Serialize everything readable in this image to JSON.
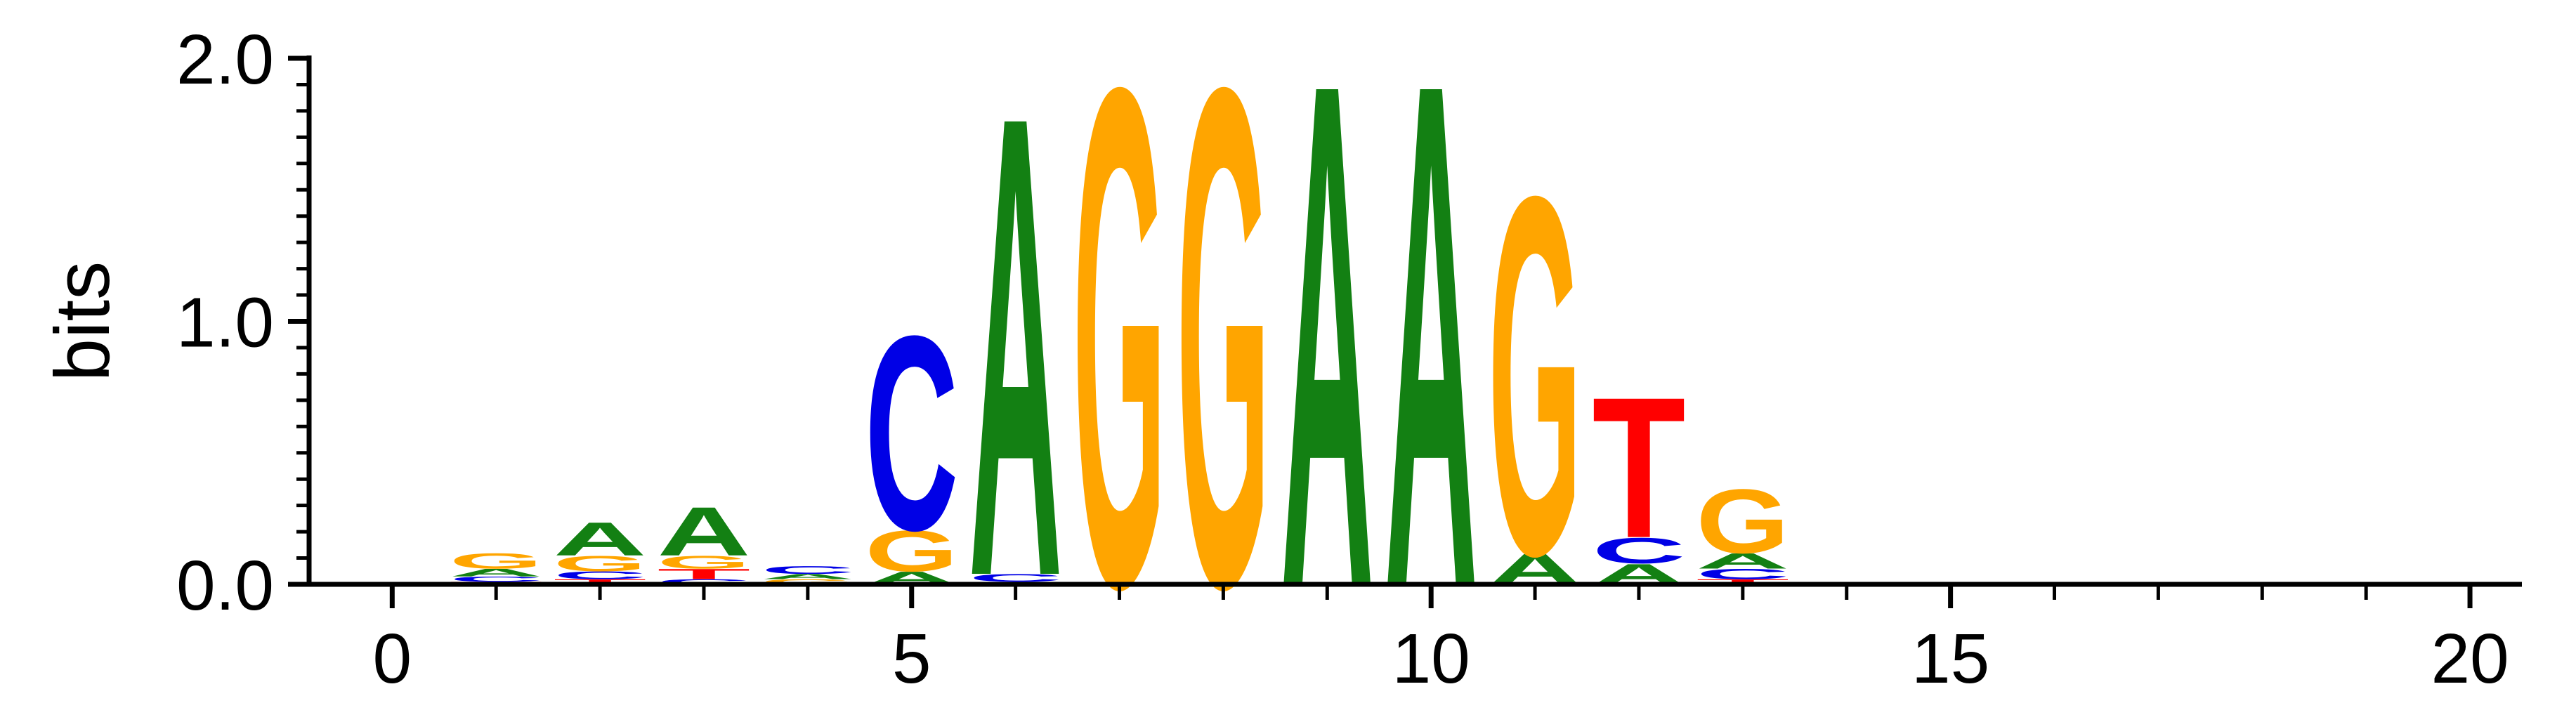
{
  "chart_data": {
    "type": "sequence-logo",
    "ylabel": "bits",
    "ylim": [
      0,
      2.0
    ],
    "xlim": [
      -0.8,
      20.5
    ],
    "x_ticks": [
      0,
      5,
      10,
      15,
      20
    ],
    "y_ticks": [
      0.0,
      1.0,
      2.0
    ],
    "x_tick_labels": [
      "0",
      "5",
      "10",
      "15",
      "20"
    ],
    "y_tick_labels": [
      "0.0",
      "1.0",
      "2.0"
    ],
    "colors": {
      "A": "#138013",
      "C": "#0000e6",
      "G": "#ffa500",
      "T": "#ff0000"
    },
    "positions": [
      {
        "pos": 1,
        "stack": [
          {
            "base": "T",
            "bits": 0.01
          },
          {
            "base": "C",
            "bits": 0.02
          },
          {
            "base": "A",
            "bits": 0.03
          },
          {
            "base": "G",
            "bits": 0.06
          }
        ]
      },
      {
        "pos": 2,
        "stack": [
          {
            "base": "T",
            "bits": 0.02
          },
          {
            "base": "C",
            "bits": 0.03
          },
          {
            "base": "G",
            "bits": 0.06
          },
          {
            "base": "A",
            "bits": 0.13
          }
        ]
      },
      {
        "pos": 3,
        "stack": [
          {
            "base": "C",
            "bits": 0.02
          },
          {
            "base": "T",
            "bits": 0.04
          },
          {
            "base": "G",
            "bits": 0.05
          },
          {
            "base": "A",
            "bits": 0.19
          }
        ]
      },
      {
        "pos": 4,
        "stack": [
          {
            "base": "G",
            "bits": 0.02
          },
          {
            "base": "A",
            "bits": 0.02
          },
          {
            "base": "C",
            "bits": 0.03
          }
        ]
      },
      {
        "pos": 5,
        "stack": [
          {
            "base": "A",
            "bits": 0.05
          },
          {
            "base": "G",
            "bits": 0.16
          },
          {
            "base": "C",
            "bits": 0.76
          }
        ]
      },
      {
        "pos": 6,
        "stack": [
          {
            "base": "G",
            "bits": 0.01
          },
          {
            "base": "C",
            "bits": 0.03
          },
          {
            "base": "A",
            "bits": 1.8
          }
        ]
      },
      {
        "pos": 7,
        "stack": [
          {
            "base": "G",
            "bits": 1.95
          }
        ]
      },
      {
        "pos": 8,
        "stack": [
          {
            "base": "G",
            "bits": 1.95
          }
        ]
      },
      {
        "pos": 9,
        "stack": [
          {
            "base": "A",
            "bits": 1.97
          }
        ]
      },
      {
        "pos": 10,
        "stack": [
          {
            "base": "A",
            "bits": 1.97
          }
        ]
      },
      {
        "pos": 11,
        "stack": [
          {
            "base": "A",
            "bits": 0.12
          },
          {
            "base": "G",
            "bits": 1.4
          }
        ]
      },
      {
        "pos": 12,
        "stack": [
          {
            "base": "A",
            "bits": 0.08
          },
          {
            "base": "C",
            "bits": 0.1
          },
          {
            "base": "T",
            "bits": 0.55
          }
        ]
      },
      {
        "pos": 13,
        "stack": [
          {
            "base": "T",
            "bits": 0.02
          },
          {
            "base": "C",
            "bits": 0.04
          },
          {
            "base": "A",
            "bits": 0.06
          },
          {
            "base": "G",
            "bits": 0.25
          }
        ]
      }
    ]
  }
}
